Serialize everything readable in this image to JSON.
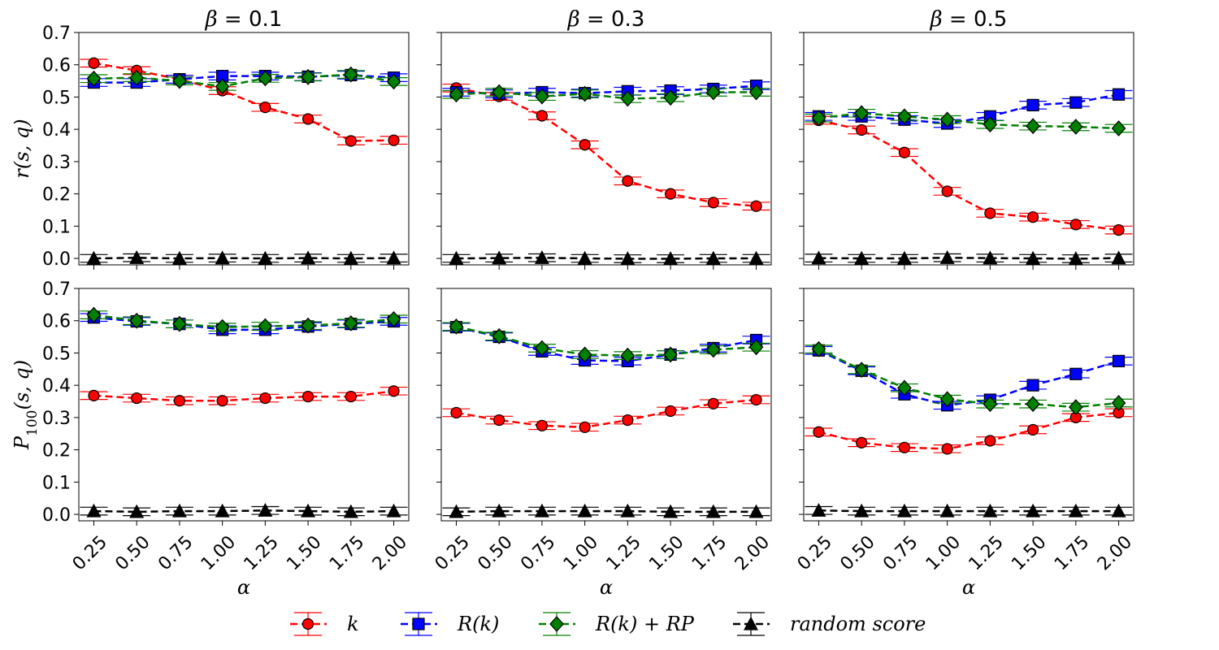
{
  "chart_data": {
    "type": "line",
    "layout": "2x3 grid of subplots",
    "x": [
      0.25,
      0.5,
      0.75,
      1.0,
      1.25,
      1.5,
      1.75,
      2.0
    ],
    "x_tick_labels": [
      "0.25",
      "0.50",
      "0.75",
      "1.00",
      "1.25",
      "1.50",
      "1.75",
      "2.00"
    ],
    "xlabel": "α",
    "ylim": [
      -0.02,
      0.7
    ],
    "y_ticks": [
      0.0,
      0.1,
      0.2,
      0.3,
      0.4,
      0.5,
      0.6,
      0.7
    ],
    "y_tick_labels": [
      "0.0",
      "0.1",
      "0.2",
      "0.3",
      "0.4",
      "0.5",
      "0.6",
      "0.7"
    ],
    "column_titles": [
      {
        "prefix": "β",
        "suffix": " = 0.1"
      },
      {
        "prefix": "β",
        "suffix": " = 0.3"
      },
      {
        "prefix": "β",
        "suffix": " = 0.5"
      }
    ],
    "row_ylabels": [
      {
        "main": "r(s, q)",
        "sub": ""
      },
      {
        "main": "P",
        "sub": "100",
        "rest": "(s, q)"
      }
    ],
    "series_styles": [
      {
        "key": "k",
        "name": "k",
        "color": "#ff0000",
        "marker": "circle",
        "fill": "#ff0000"
      },
      {
        "key": "Rk",
        "name": "R(k)",
        "color": "#0000ff",
        "marker": "square",
        "fill": "#0000ff"
      },
      {
        "key": "RkRP",
        "name": "R(k) + RP",
        "color": "#008000",
        "marker": "diamond",
        "fill": "#008000"
      },
      {
        "key": "rand",
        "name": "random score",
        "color": "#000000",
        "marker": "triangle",
        "fill": "#000000"
      }
    ],
    "panels": [
      {
        "row": 0,
        "col": 0,
        "series": {
          "k": [
            0.605,
            0.582,
            0.555,
            0.52,
            0.468,
            0.432,
            0.364,
            0.366
          ],
          "Rk": [
            0.545,
            0.545,
            0.555,
            0.565,
            0.565,
            0.563,
            0.568,
            0.56
          ],
          "RkRP": [
            0.557,
            0.56,
            0.55,
            0.533,
            0.558,
            0.562,
            0.57,
            0.548
          ],
          "rand": [
            0.0,
            0.002,
            0.0,
            0.001,
            0.0,
            0.001,
            0.0,
            0.001
          ]
        }
      },
      {
        "row": 0,
        "col": 1,
        "series": {
          "k": [
            0.528,
            0.502,
            0.442,
            0.352,
            0.24,
            0.2,
            0.173,
            0.162
          ],
          "Rk": [
            0.515,
            0.51,
            0.515,
            0.512,
            0.518,
            0.52,
            0.525,
            0.535
          ],
          "RkRP": [
            0.508,
            0.515,
            0.502,
            0.51,
            0.495,
            0.498,
            0.515,
            0.515
          ],
          "rand": [
            0.0,
            0.001,
            0.002,
            0.0,
            -0.001,
            -0.001,
            0.0,
            0.0
          ]
        }
      },
      {
        "row": 0,
        "col": 2,
        "series": {
          "k": [
            0.428,
            0.398,
            0.328,
            0.208,
            0.14,
            0.128,
            0.105,
            0.088
          ],
          "Rk": [
            0.44,
            0.44,
            0.43,
            0.418,
            0.44,
            0.475,
            0.483,
            0.508
          ],
          "RkRP": [
            0.435,
            0.45,
            0.44,
            0.43,
            0.415,
            0.41,
            0.408,
            0.403
          ],
          "rand": [
            0.001,
            0.0,
            0.0,
            0.002,
            0.001,
            0.0,
            -0.001,
            0.001
          ]
        }
      },
      {
        "row": 1,
        "col": 0,
        "series": {
          "k": [
            0.368,
            0.36,
            0.352,
            0.352,
            0.36,
            0.365,
            0.365,
            0.382
          ],
          "Rk": [
            0.61,
            0.598,
            0.59,
            0.572,
            0.572,
            0.582,
            0.59,
            0.598
          ],
          "RkRP": [
            0.618,
            0.6,
            0.59,
            0.58,
            0.583,
            0.585,
            0.592,
            0.605
          ],
          "rand": [
            0.01,
            0.008,
            0.01,
            0.01,
            0.012,
            0.01,
            0.008,
            0.01
          ]
        }
      },
      {
        "row": 1,
        "col": 1,
        "series": {
          "k": [
            0.315,
            0.292,
            0.275,
            0.27,
            0.292,
            0.32,
            0.343,
            0.355
          ],
          "Rk": [
            0.58,
            0.55,
            0.505,
            0.477,
            0.475,
            0.495,
            0.515,
            0.54
          ],
          "RkRP": [
            0.582,
            0.552,
            0.515,
            0.495,
            0.492,
            0.495,
            0.51,
            0.518
          ],
          "rand": [
            0.008,
            0.01,
            0.01,
            0.01,
            0.01,
            0.008,
            0.008,
            0.008
          ]
        }
      },
      {
        "row": 1,
        "col": 2,
        "series": {
          "k": [
            0.255,
            0.222,
            0.207,
            0.203,
            0.228,
            0.262,
            0.3,
            0.315
          ],
          "Rk": [
            0.508,
            0.445,
            0.372,
            0.338,
            0.355,
            0.4,
            0.435,
            0.475
          ],
          "RkRP": [
            0.512,
            0.448,
            0.392,
            0.357,
            0.342,
            0.342,
            0.332,
            0.345
          ],
          "rand": [
            0.012,
            0.01,
            0.01,
            0.01,
            0.01,
            0.01,
            0.01,
            0.01
          ]
        }
      }
    ],
    "legend": {
      "placement": "bottom-center",
      "entries": [
        "k",
        "R(k)",
        "R(k) + RP",
        "random score"
      ]
    },
    "grid": false
  }
}
